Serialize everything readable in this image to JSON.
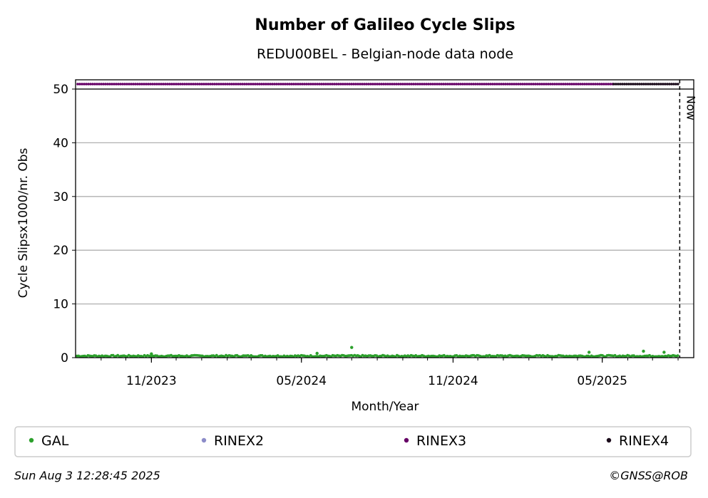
{
  "chart_data": {
    "type": "scatter",
    "title": "Number of Galileo Cycle Slips",
    "subtitle": "REDU00BEL - Belgian-node data node",
    "xlabel": "Month/Year",
    "ylabel": "Cycle Slipsx1000/nr. Obs",
    "ylim": [
      0,
      50
    ],
    "yticks": [
      0,
      10,
      20,
      30,
      40,
      50
    ],
    "xlim": [
      "2023-08-01",
      "2025-08-20"
    ],
    "xtick_labels": [
      {
        "date": "2023-11-01",
        "label": "11/2023"
      },
      {
        "date": "2024-05-01",
        "label": "05/2024"
      },
      {
        "date": "2024-11-01",
        "label": "11/2024"
      },
      {
        "date": "2025-05-01",
        "label": "05/2025"
      }
    ],
    "grid": "horizontal",
    "now_marker": {
      "date": "2025-08-03",
      "label": "Now"
    },
    "series": [
      {
        "name": "GAL",
        "color": "#2ca02c",
        "typical_value": 0.3,
        "points": [
          {
            "x": "2024-07-01",
            "y": 1.9
          },
          {
            "x": "2025-04-15",
            "y": 1.0
          },
          {
            "x": "2025-06-20",
            "y": 1.2
          },
          {
            "x": "2025-07-15",
            "y": 1.0
          },
          {
            "x": "2024-05-20",
            "y": 0.8
          },
          {
            "x": "2023-11-01",
            "y": 0.7
          }
        ]
      },
      {
        "name": "RINEX2",
        "color": "#8c8cc8"
      },
      {
        "name": "RINEX3",
        "color": "#660066",
        "y": 51,
        "start": "2023-08-01",
        "end": "2025-05-15"
      },
      {
        "name": "RINEX4",
        "color": "#1a0a1a",
        "y": 51,
        "start": "2025-05-15",
        "end": "2025-08-03"
      }
    ],
    "legend_placement": "bottom"
  },
  "footer": {
    "timestamp": "Sun Aug  3 12:28:45 2025",
    "credit": "©GNSS@ROB"
  }
}
